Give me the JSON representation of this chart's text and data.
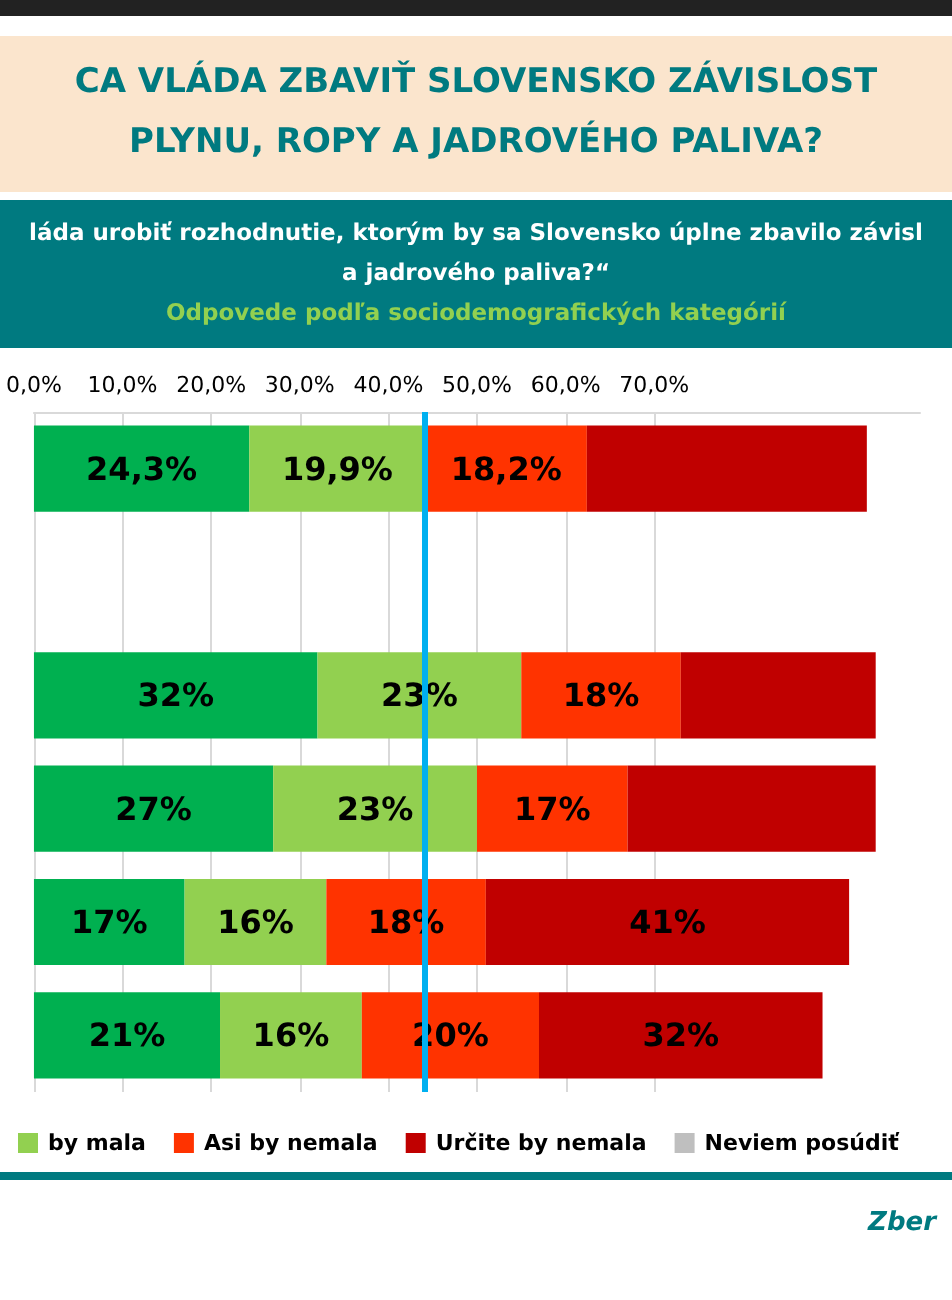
{
  "chart_data": {
    "type": "bar",
    "orientation": "horizontal",
    "stacked": true,
    "title": "CA VLÁDA ZBAVIŤ SLOVENSKO ZÁVISLOST\nPLYNU, ROPY A JADROVÉHO PALIVA?",
    "subtitle": "láda urobiť rozhodnutie, ktorým by sa Slovensko úplne zbavilo závisl\na jadrového paliva?“",
    "annotations": [
      "Odpovede podľa sociodemografických kategórií",
      "Zber"
    ],
    "categories": [
      null,
      null,
      null,
      null,
      null,
      null
    ],
    "series": [
      {
        "color": "#00b050",
        "values": [
          24.3,
          null,
          32,
          27,
          17,
          21
        ],
        "value_labels": [
          "24,3%",
          null,
          "32%",
          "27%",
          "17%",
          "21%"
        ]
      },
      {
        "name": "by mala",
        "color": "#92d050",
        "values": [
          19.9,
          null,
          23,
          23,
          16,
          16
        ],
        "value_labels": [
          "19,9%",
          null,
          "23%",
          "23%",
          "16%",
          "16%"
        ]
      },
      {
        "name": "Asi by nemala",
        "color": "#ff3300",
        "values": [
          18.2,
          null,
          18,
          17,
          18,
          20
        ],
        "value_labels": [
          "18,2%",
          null,
          "18%",
          "17%",
          "18%",
          "20%"
        ]
      },
      {
        "name": "Určite by nemala",
        "color": "#c00000",
        "values": [
          31.6,
          null,
          22,
          28,
          41,
          32
        ],
        "value_labels": [
          null,
          null,
          null,
          null,
          "41%",
          "32%"
        ]
      },
      {
        "name": "Neviem posúdiť",
        "color": "#bfbfbf",
        "values": [
          null,
          null,
          null,
          null,
          null,
          null
        ]
      }
    ],
    "xlim": [
      0,
      100
    ],
    "xticks": [
      {
        "value": 0,
        "label": "0,0%"
      },
      {
        "value": 10,
        "label": "10,0%"
      },
      {
        "value": 20,
        "label": "20,0%"
      },
      {
        "value": 30,
        "label": "30,0%"
      },
      {
        "value": 40,
        "label": "40,0%"
      },
      {
        "value": 50,
        "label": "50,0%"
      },
      {
        "value": 60,
        "label": "60,0%"
      },
      {
        "value": 70,
        "label": "70,0%"
      }
    ],
    "ref_lines": [
      {
        "axis": "x",
        "value": 44,
        "color": "#00b0f0"
      }
    ],
    "grid": "x",
    "legend": "bottom"
  }
}
